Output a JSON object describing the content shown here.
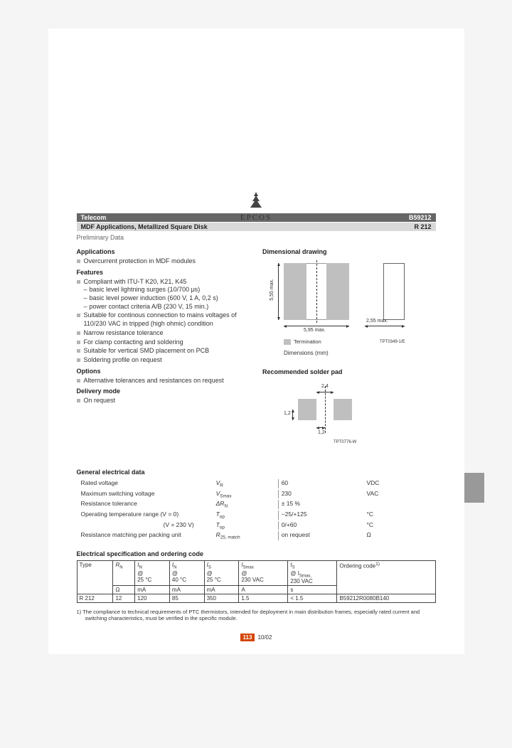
{
  "brand": "EPCOS",
  "header": {
    "bar1_left": "Telecom",
    "bar1_right": "B59212",
    "bar2_left": "MDF Applications, Metallized Square Disk",
    "bar2_right": "R 212",
    "prelim": "Preliminary Data"
  },
  "sections": {
    "applications_h": "Applications",
    "applications": [
      "Overcurrent protection in MDF modules"
    ],
    "features_h": "Features",
    "features": [
      "Compliant with ITU-T K20, K21, K45",
      "Suitable for continous connection to mains voltages of 110/230 VAC in tripped (high ohmic) condition",
      "Narrow resistance tolerance",
      "For clamp contacting and soldering",
      "Suitable for vertical SMD placement on PCB",
      "Soldering profile on request"
    ],
    "features_sub": [
      "basic level lightning surges (10/700 μs)",
      "basic level power induction (600 V, 1 A, 0,2 s)",
      "power contact criteria A/B (230 V, 15 min.)"
    ],
    "options_h": "Options",
    "options": [
      "Alternative tolerances and resistances on request"
    ],
    "delivery_h": "Delivery mode",
    "delivery": [
      "On request"
    ]
  },
  "dim": {
    "title": "Dimensional drawing",
    "height_label": "5,55 max.",
    "width_label": "5,95 max.",
    "term_label": "2,55 max.",
    "legend": "Termination",
    "code": "TPT0349-1/E",
    "caption": "Dimensions (mm)",
    "colors": {
      "termination": "#bfbfbf",
      "outline": "#666666"
    }
  },
  "solder": {
    "title": "Recommended solder pad",
    "dim_2_4": "2,4",
    "dim_1_2a": "1,2",
    "dim_1_2b": "1,2",
    "code": "TPT0776-W",
    "pad_color": "#bfbfbf"
  },
  "ged": {
    "title": "General electrical data",
    "rows": [
      {
        "param": "Rated voltage",
        "sym": "V",
        "sub": "R",
        "val": "60",
        "unit": "VDC"
      },
      {
        "param": "Maximum switching voltage",
        "sym": "V",
        "sub": "Smax",
        "val": "230",
        "unit": "VAC"
      },
      {
        "param": "Resistance tolerance",
        "sym": "ΔR",
        "sub": "N",
        "val": "± 15 %",
        "unit": ""
      },
      {
        "param": "Operating temperature range (V = 0)",
        "sym": "T",
        "sub": "op",
        "val": "−25/+125",
        "unit": "°C"
      },
      {
        "param": "(V = 230 V)",
        "sym": "T",
        "sub": "op",
        "val": "0/+60",
        "unit": "°C",
        "indent": true
      },
      {
        "param": "Resistance matching per packing unit",
        "sym": "R",
        "sub": "25, match",
        "val": "on request",
        "unit": "Ω"
      }
    ]
  },
  "spec": {
    "title": "Electrical specification and ordering code",
    "head": {
      "c1": "Type",
      "c2": "R",
      "c2sub": "N",
      "c3": "I",
      "c3sub": "N",
      "c3l2": "@",
      "c3l3": "25 °C",
      "c4": "I",
      "c4sub": "N",
      "c4l2": "@",
      "c4l3": "40 °C",
      "c5": "I",
      "c5sub": "S",
      "c5l2": "@",
      "c5l3": "25 °C",
      "c6": "I",
      "c6sub": "Smax",
      "c6l2": "@",
      "c6l3": "230 VAC",
      "c7": "t",
      "c7sub": "S",
      "c7l2": "@ I",
      "c7l2sub": "Smax,",
      "c7l3": "230 VAC",
      "c8": "Ordering code",
      "c8sup": "1)",
      "units": {
        "c2": "Ω",
        "c3": "mA",
        "c4": "mA",
        "c5": "mA",
        "c6": "A",
        "c7": "s"
      }
    },
    "row": {
      "type": "R 212",
      "rn": "12",
      "in25": "120",
      "in40": "85",
      "is25": "350",
      "ismax": "1.5",
      "ts": "< 1.5",
      "code": "B59212R0080B140"
    }
  },
  "footnote": "1)   The compliance to technical requirements of PTC thermistors, intended for deployment in main distribution frames, especially rated current and switching characteristics, must be verified in the specific module.",
  "footer": {
    "page": "113",
    "date": "10/02"
  },
  "colors": {
    "accent": "#d44500",
    "bar_dark": "#666666",
    "bar_light": "#d9d9d9"
  }
}
